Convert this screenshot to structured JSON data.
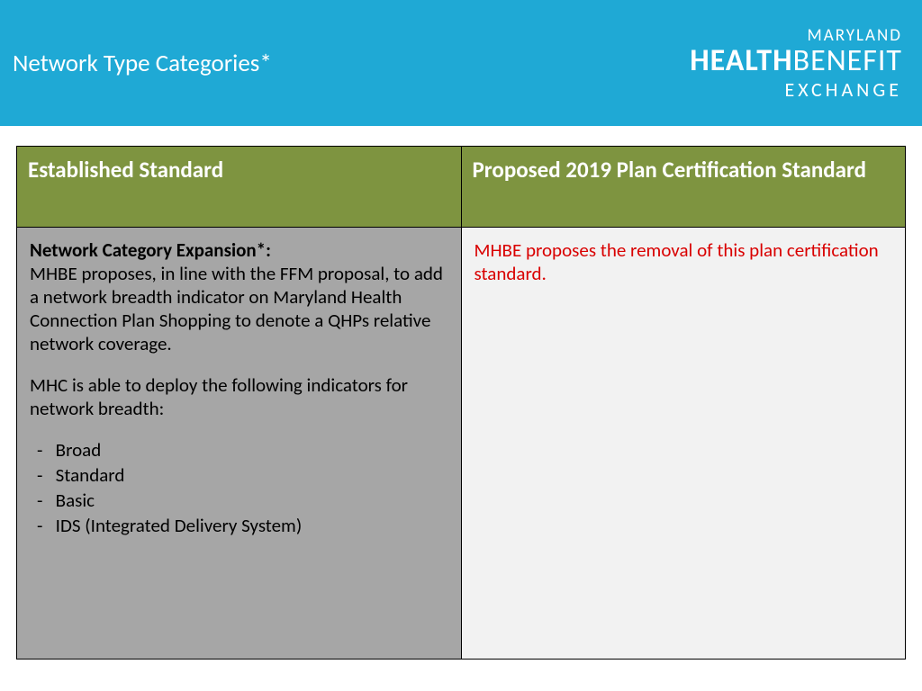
{
  "header": {
    "title": "Network Type Categories*",
    "logo": {
      "line1": "MARYLAND",
      "line2a": "HEALTH",
      "line2b": "BENEFIT",
      "line3": "EXCHANGE"
    }
  },
  "table": {
    "columns": [
      "Established Standard",
      "Proposed 2019 Plan Certification Standard"
    ],
    "header_bg": "#7e9440",
    "header_text_color": "#ffffff",
    "left_cell": {
      "bg": "#a6a6a6",
      "title": "Network Category Expansion*:",
      "body1": "MHBE proposes, in line with the FFM proposal, to add a network breadth indicator on Maryland Health Connection Plan Shopping to denote a QHPs relative network coverage.",
      "body2": "MHC is able to deploy the following indicators for network breadth:",
      "bullets": [
        "Broad",
        "Standard",
        "Basic",
        "IDS (Integrated Delivery System)"
      ]
    },
    "right_cell": {
      "bg": "#f2f2f2",
      "text_color": "#d90000",
      "text": "MHBE proposes the removal of this plan certification standard."
    }
  }
}
